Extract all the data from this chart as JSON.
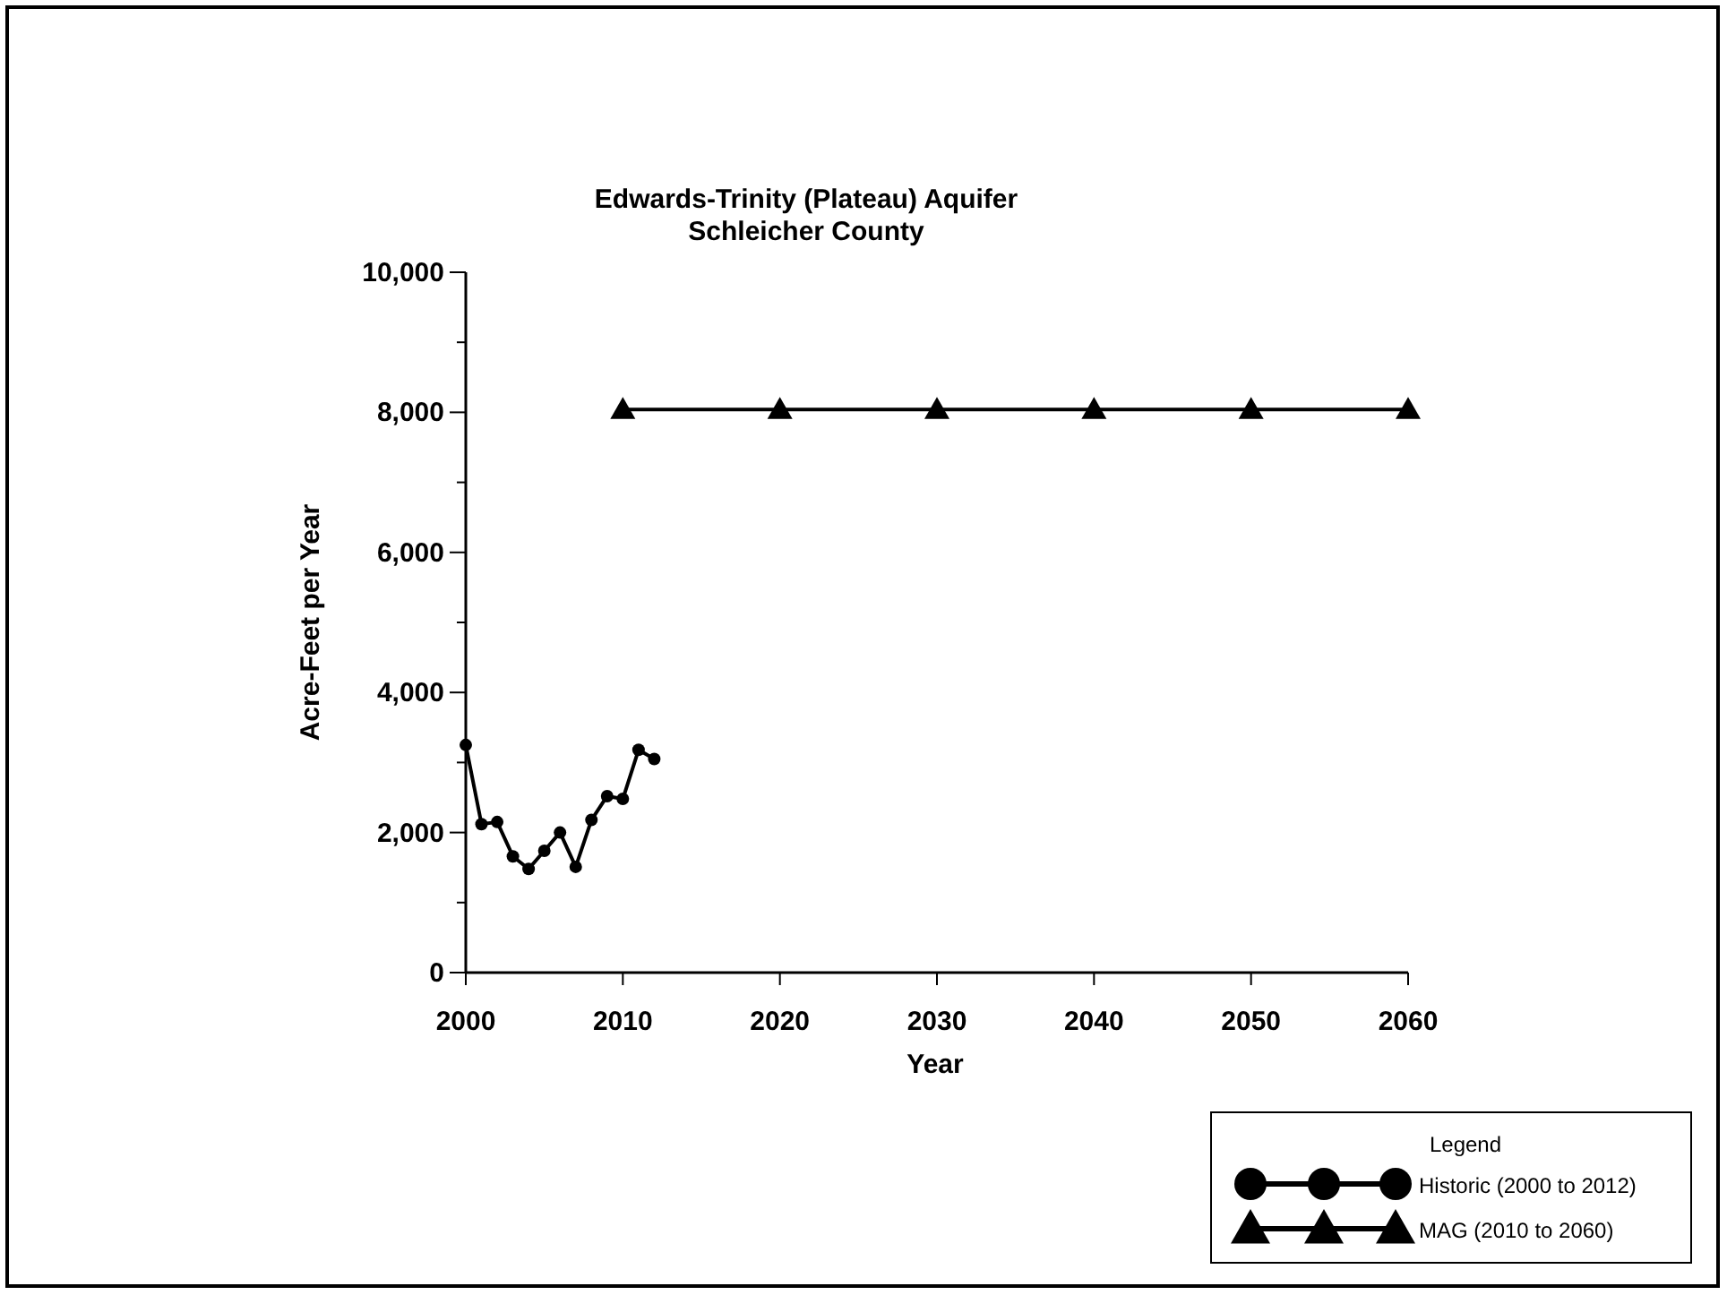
{
  "chart_data": {
    "type": "line",
    "title": "Edwards-Trinity (Plateau) Aquifer\nSchleicher County",
    "xlabel": "Year",
    "ylabel": "Acre-Feet per Year",
    "legend_title": "Legend",
    "legend": "bottom right",
    "xlim": [
      2000,
      2060
    ],
    "xticks": [
      2000,
      2010,
      2020,
      2030,
      2040,
      2050,
      2060
    ],
    "ylim": [
      0,
      10000
    ],
    "yticks": [
      {
        "value": 0,
        "label": "0"
      },
      {
        "value": 1000,
        "label": null
      },
      {
        "value": 2000,
        "label": "2,000"
      },
      {
        "value": 3000,
        "label": null
      },
      {
        "value": 4000,
        "label": "4,000"
      },
      {
        "value": 5000,
        "label": null
      },
      {
        "value": 6000,
        "label": "6,000"
      },
      {
        "value": 7000,
        "label": null
      },
      {
        "value": 8000,
        "label": "8,000"
      },
      {
        "value": 9000,
        "label": null
      },
      {
        "value": 10000,
        "label": "10,000"
      }
    ],
    "series": [
      {
        "name": "Historic (2000 to 2012)",
        "color": "#000000",
        "marker": "circle",
        "x": [
          2000,
          2001,
          2002,
          2003,
          2004,
          2005,
          2006,
          2007,
          2008,
          2009,
          2010,
          2011,
          2012
        ],
        "values": [
          3250,
          2120,
          2150,
          1660,
          1480,
          1740,
          2000,
          1510,
          2180,
          2520,
          2480,
          3180,
          3050
        ]
      },
      {
        "name": "MAG (2010 to 2060)",
        "color": "#000000",
        "marker": "triangle",
        "x": [
          2010,
          2020,
          2030,
          2040,
          2050,
          2060
        ],
        "values": [
          8040,
          8040,
          8040,
          8040,
          8040,
          8040
        ]
      }
    ]
  }
}
